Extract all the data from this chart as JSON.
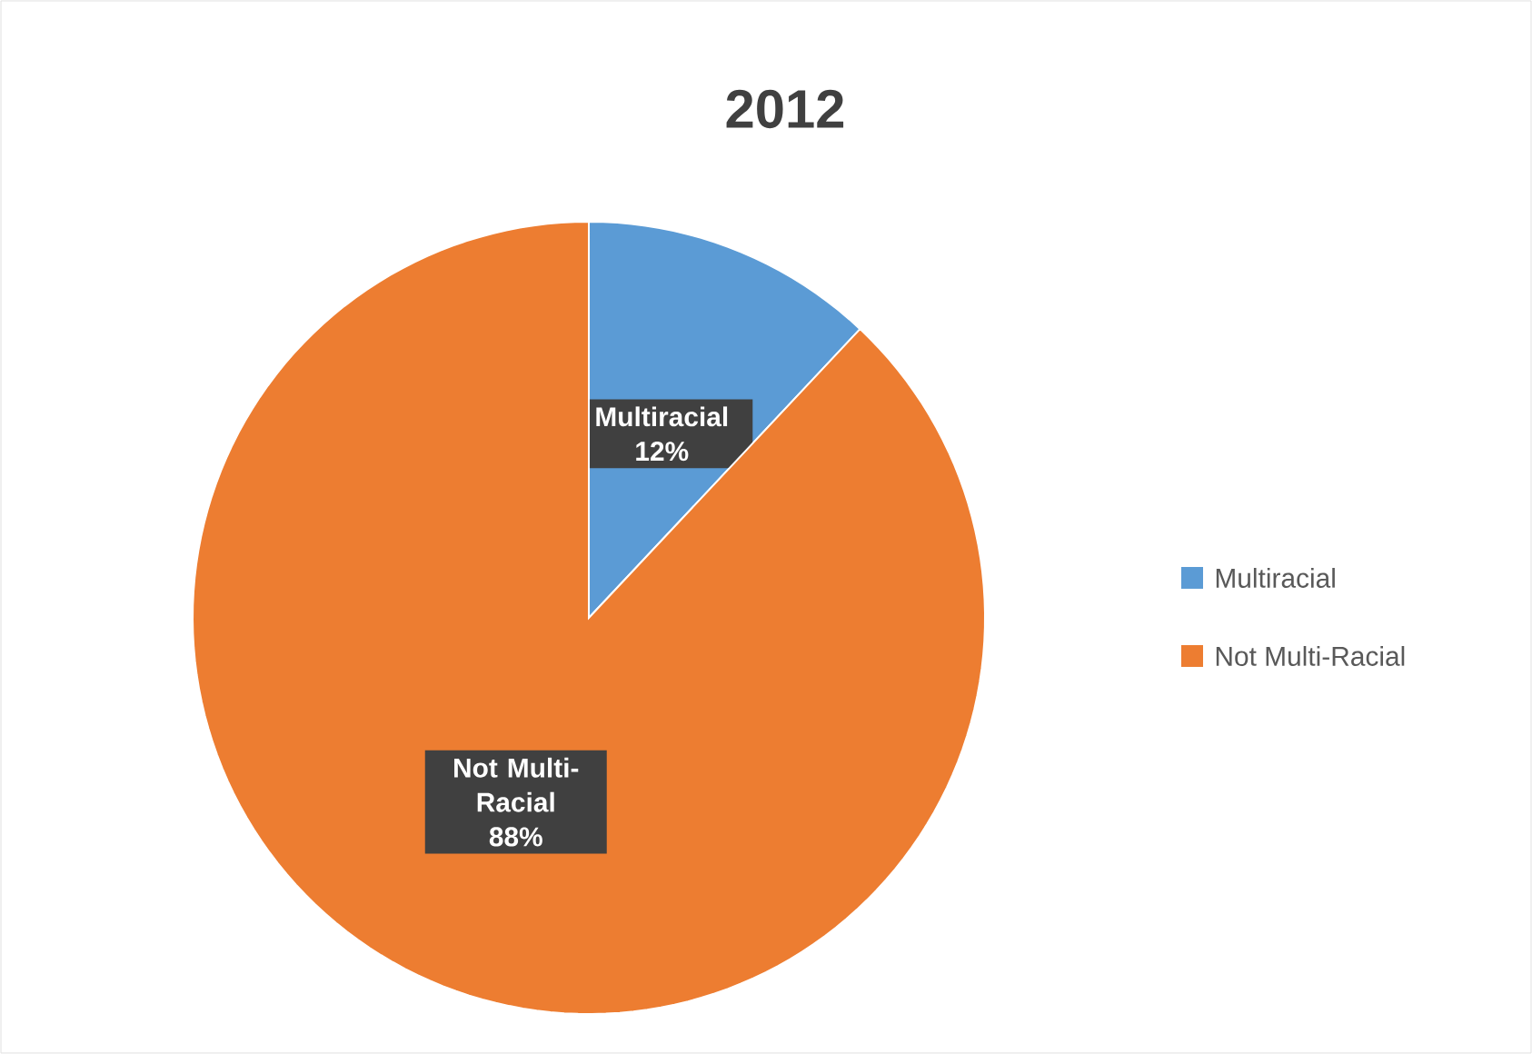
{
  "chart_data": {
    "type": "pie",
    "title": "2012",
    "categories": [
      "Multiracial",
      "Not Multi-Racial"
    ],
    "values": [
      12,
      88
    ],
    "colors": [
      "#5b9bd5",
      "#ed7d31"
    ],
    "value_labels": [
      "12%",
      "88%"
    ],
    "legend": "right"
  }
}
